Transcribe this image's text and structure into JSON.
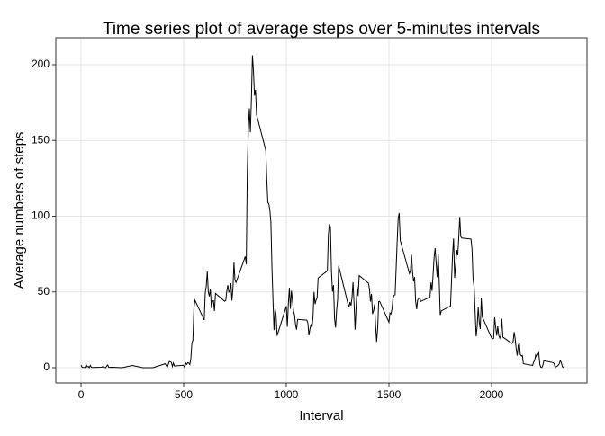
{
  "chart_data": {
    "type": "line",
    "title": "Time series plot of average steps over 5-minutes intervals",
    "x_label": "Interval",
    "y_label": "Average numbers of steps",
    "x": [
      0,
      5,
      10,
      20,
      25,
      30,
      35,
      40,
      45,
      50,
      55,
      100,
      105,
      110,
      120,
      125,
      130,
      135,
      150,
      200,
      250,
      300,
      350,
      410,
      420,
      430,
      440,
      445,
      450,
      455,
      500,
      505,
      510,
      515,
      520,
      525,
      530,
      535,
      540,
      545,
      550,
      555,
      600,
      605,
      610,
      615,
      620,
      625,
      630,
      635,
      640,
      645,
      650,
      655,
      700,
      705,
      710,
      715,
      720,
      725,
      730,
      735,
      740,
      745,
      750,
      755,
      800,
      805,
      810,
      815,
      820,
      825,
      830,
      835,
      840,
      845,
      850,
      855,
      900,
      905,
      910,
      915,
      920,
      925,
      930,
      935,
      940,
      945,
      950,
      955,
      1000,
      1005,
      1010,
      1015,
      1020,
      1025,
      1030,
      1035,
      1040,
      1045,
      1050,
      1055,
      1100,
      1105,
      1110,
      1115,
      1120,
      1125,
      1130,
      1135,
      1140,
      1145,
      1150,
      1155,
      1200,
      1205,
      1210,
      1215,
      1220,
      1225,
      1230,
      1235,
      1240,
      1245,
      1250,
      1255,
      1300,
      1305,
      1310,
      1315,
      1320,
      1325,
      1330,
      1335,
      1340,
      1345,
      1350,
      1355,
      1400,
      1405,
      1410,
      1415,
      1420,
      1425,
      1430,
      1435,
      1440,
      1445,
      1450,
      1455,
      1500,
      1505,
      1510,
      1515,
      1520,
      1525,
      1530,
      1535,
      1540,
      1545,
      1550,
      1555,
      1600,
      1605,
      1610,
      1615,
      1620,
      1625,
      1630,
      1635,
      1640,
      1645,
      1650,
      1655,
      1700,
      1705,
      1710,
      1715,
      1720,
      1725,
      1730,
      1735,
      1740,
      1745,
      1750,
      1755,
      1800,
      1805,
      1810,
      1815,
      1820,
      1825,
      1830,
      1835,
      1840,
      1845,
      1850,
      1855,
      1900,
      1905,
      1910,
      1915,
      1920,
      1925,
      1930,
      1935,
      1940,
      1945,
      1950,
      1955,
      2000,
      2005,
      2010,
      2015,
      2020,
      2025,
      2030,
      2035,
      2040,
      2045,
      2050,
      2055,
      2100,
      2105,
      2110,
      2115,
      2120,
      2125,
      2130,
      2135,
      2140,
      2145,
      2150,
      2155,
      2200,
      2205,
      2210,
      2215,
      2220,
      2225,
      2230,
      2235,
      2240,
      2245,
      2250,
      2255,
      2300,
      2305,
      2310,
      2315,
      2320,
      2325,
      2330,
      2335,
      2340,
      2345,
      2350,
      2355
    ],
    "values": [
      1.7,
      0.3,
      0.1,
      0.1,
      2.1,
      0.5,
      0.9,
      0,
      1.5,
      0.3,
      0.1,
      0.3,
      0.7,
      0.2,
      0,
      1.1,
      1.8,
      0.2,
      0.3,
      0,
      1.5,
      0,
      0,
      2.6,
      0.3,
      4.1,
      3.5,
      0.8,
      3.1,
      1.1,
      1.6,
      0,
      3.0,
      2.2,
      3.3,
      3.0,
      2.1,
      6.1,
      16.0,
      18.3,
      39.5,
      44.5,
      31.5,
      49.3,
      53.8,
      63.5,
      50.0,
      47.1,
      52.2,
      39.3,
      44.0,
      44.2,
      37.4,
      49.0,
      43.8,
      44.4,
      50.5,
      54.5,
      49.9,
      50.9,
      55.7,
      44.3,
      52.3,
      69.5,
      57.8,
      56.2,
      73.4,
      68.2,
      129.4,
      157.5,
      171.2,
      155.4,
      177.3,
      206.2,
      195.9,
      179.6,
      183.4,
      167.0,
      143.5,
      124.0,
      109.1,
      108.1,
      103.7,
      95.9,
      66.2,
      45.2,
      24.8,
      38.8,
      35.0,
      21.1,
      40.6,
      27.0,
      42.4,
      52.7,
      38.9,
      50.8,
      44.3,
      37.4,
      34.7,
      28.3,
      25.1,
      31.9,
      31.4,
      29.7,
      21.3,
      25.5,
      28.4,
      26.5,
      33.4,
      50.0,
      42.0,
      44.6,
      46.0,
      59.2,
      63.9,
      87.7,
      94.8,
      92.8,
      63.4,
      50.2,
      54.5,
      32.4,
      26.5,
      37.7,
      45.1,
      67.3,
      42.3,
      39.9,
      43.3,
      41.0,
      46.2,
      56.4,
      42.8,
      25.1,
      40.0,
      53.5,
      47.3,
      60.8,
      55.8,
      52.0,
      43.6,
      48.7,
      35.5,
      37.5,
      41.8,
      27.5,
      17.1,
      26.1,
      43.6,
      43.8,
      30.0,
      36.1,
      35.5,
      38.8,
      46.0,
      47.8,
      48.1,
      65.3,
      82.9,
      98.7,
      102.1,
      84.0,
      62.1,
      64.1,
      74.5,
      63.2,
      56.9,
      59.8,
      43.9,
      38.6,
      44.7,
      45.5,
      46.2,
      43.7,
      46.6,
      56.3,
      50.7,
      61.2,
      72.7,
      78.9,
      68.9,
      59.7,
      75.1,
      56.5,
      34.8,
      37.5,
      40.7,
      58.0,
      74.7,
      85.3,
      59.3,
      67.8,
      77.7,
      74.2,
      85.3,
      99.5,
      86.6,
      85.6,
      84.9,
      77.8,
      58.0,
      53.4,
      36.3,
      20.7,
      27.4,
      40.0,
      30.2,
      25.5,
      45.7,
      33.5,
      19.6,
      19.0,
      19.3,
      33.3,
      26.8,
      21.2,
      27.3,
      21.3,
      19.5,
      21.3,
      32.3,
      20.2,
      15.9,
      17.2,
      23.5,
      19.2,
      12.5,
      8.0,
      14.7,
      16.3,
      8.7,
      7.8,
      8.1,
      2.6,
      1.5,
      3.7,
      4.8,
      8.5,
      7.1,
      8.7,
      9.8,
      2.2,
      0.3,
      0.1,
      1.6,
      4.6,
      3.3,
      2.8,
      0,
      0.8,
      1.0,
      1.6,
      2.6,
      4.7,
      3.3,
      0.6,
      0.2,
      1.1
    ],
    "color": "#000000",
    "xlim": [
      -123,
      2465
    ],
    "ylim": [
      -10.1,
      217.8
    ],
    "xticks": [
      0,
      500,
      1000,
      1500,
      2000
    ],
    "yticks": [
      0,
      50,
      100,
      150,
      200
    ],
    "grid": true
  }
}
